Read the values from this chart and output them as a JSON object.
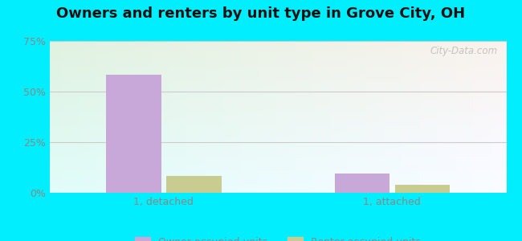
{
  "title": "Owners and renters by unit type in Grove City, OH",
  "categories": [
    "1, detached",
    "1, attached"
  ],
  "owner_values": [
    0.585,
    0.095
  ],
  "renter_values": [
    0.082,
    0.038
  ],
  "owner_color": "#c8a8d8",
  "renter_color": "#c8cc90",
  "ylim": [
    0,
    0.75
  ],
  "yticks": [
    0.0,
    0.25,
    0.5,
    0.75
  ],
  "yticklabels": [
    "0%",
    "25%",
    "50%",
    "75%"
  ],
  "bar_width": 0.12,
  "title_fontsize": 13,
  "tick_fontsize": 9,
  "label_fontsize": 9,
  "legend_fontsize": 9,
  "outer_bg": "#00eeff",
  "watermark": "City-Data.com",
  "grid_color": "#dddddd",
  "axis_label_color": "#888888",
  "bg_top_left": "#d4eeda",
  "bg_bottom_right": "#e8f8f8"
}
